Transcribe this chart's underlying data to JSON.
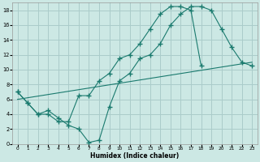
{
  "xlabel": "Humidex (Indice chaleur)",
  "background_color": "#cce8e4",
  "grid_color": "#aaccca",
  "line_color": "#1a7a6e",
  "xlim": [
    -0.5,
    23.5
  ],
  "ylim": [
    0,
    19
  ],
  "xticks": [
    0,
    1,
    2,
    3,
    4,
    5,
    6,
    7,
    8,
    9,
    10,
    11,
    12,
    13,
    14,
    15,
    16,
    17,
    18,
    19,
    20,
    21,
    22,
    23
  ],
  "yticks": [
    0,
    2,
    4,
    6,
    8,
    10,
    12,
    14,
    16,
    18
  ],
  "line1_x": [
    0,
    1,
    2,
    3,
    4,
    5,
    6,
    7,
    8,
    9,
    10,
    11,
    12,
    13,
    14,
    15,
    16,
    17,
    18
  ],
  "line1_y": [
    7,
    5.5,
    4,
    4,
    3,
    3,
    6.5,
    6.5,
    8.5,
    9.5,
    11.5,
    12.0,
    13.5,
    15.5,
    17.5,
    18.5,
    18.5,
    18,
    10.5
  ],
  "line2_x": [
    0,
    1,
    2,
    3,
    4,
    5,
    6,
    7,
    8,
    9,
    10,
    11,
    12,
    13,
    14,
    15,
    16,
    17,
    18,
    19,
    20,
    21,
    22,
    23
  ],
  "line2_y": [
    7,
    5.5,
    4,
    4.5,
    3.5,
    2.5,
    2.0,
    0.2,
    0.5,
    5.0,
    8.5,
    9.5,
    11.5,
    12.0,
    13.5,
    16.0,
    17.5,
    18.5,
    18.5,
    18.0,
    15.5,
    13.0,
    11.0,
    10.5
  ],
  "line3_x": [
    0,
    23
  ],
  "line3_y": [
    6.0,
    11.0
  ]
}
